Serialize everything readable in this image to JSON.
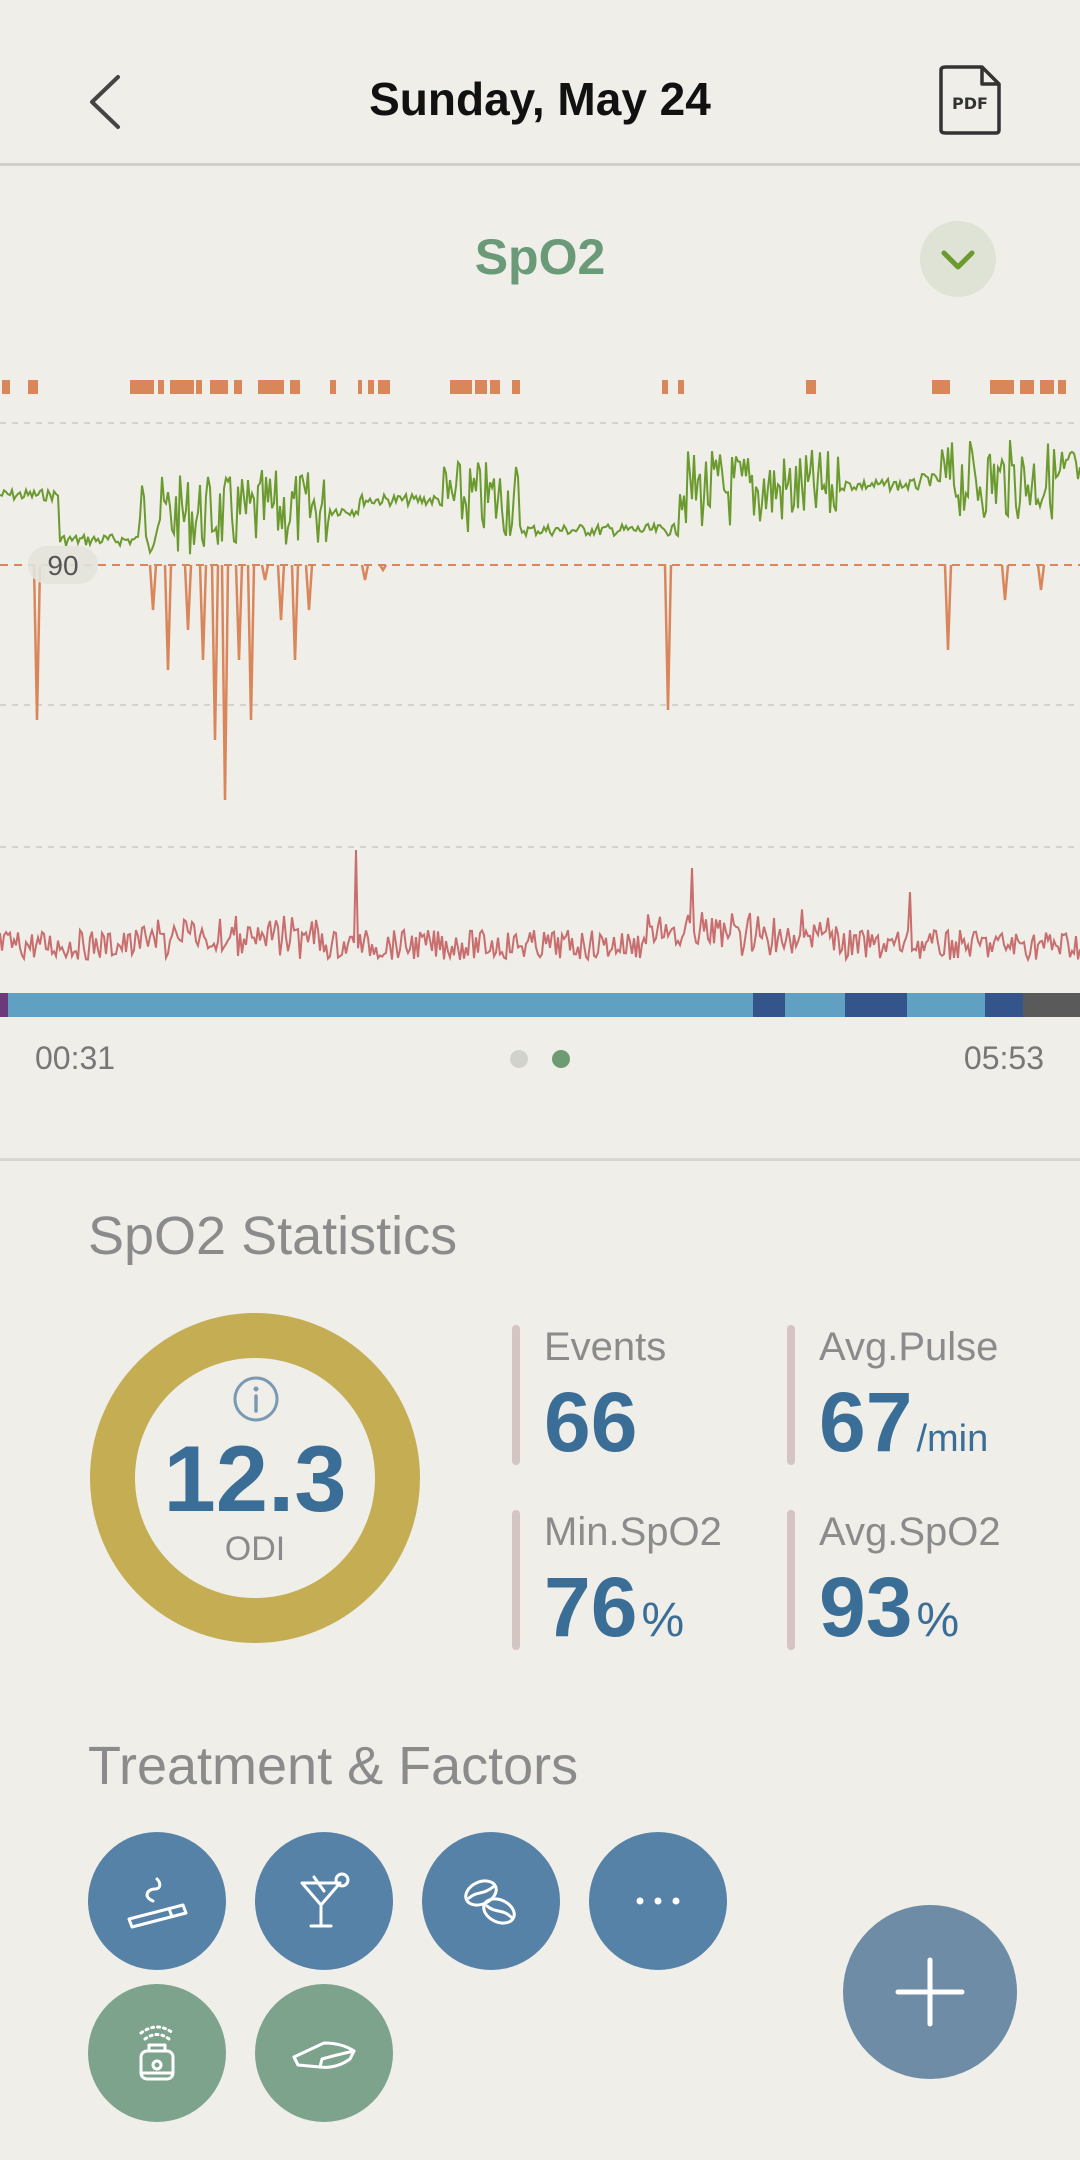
{
  "header": {
    "title": "Sunday, May 24",
    "back_icon": "chevron-left-icon",
    "pdf_label": "PDF"
  },
  "chart_section": {
    "title": "SpO2",
    "reference_label": "90",
    "start_time": "00:31",
    "end_time": "05:53",
    "page_indicator": {
      "pages": 2,
      "current": 2
    }
  },
  "chart_data": {
    "type": "line",
    "x_range": [
      "00:31",
      "05:53"
    ],
    "threshold": 90,
    "series": [],
    "colors": {
      "spo2": "#6b9a2e",
      "desaturation": "#d9875a",
      "pulse": "#c86e6e",
      "sleep_light": "#5fa0c3",
      "sleep_deep": "#34548c",
      "sleep_awake": "#5a5a5a",
      "sleep_rem": "#6b3a78"
    }
  },
  "stats": {
    "title": "SpO2 Statistics",
    "odi": {
      "value": "12.3",
      "label": "ODI",
      "ring_color": "#c4ad53"
    },
    "events": {
      "label": "Events",
      "value": "66",
      "unit": ""
    },
    "avg_pulse": {
      "label": "Avg.Pulse",
      "value": "67",
      "unit": "/min"
    },
    "min_spo2": {
      "label": "Min.SpO2",
      "value": "76",
      "unit": "%"
    },
    "avg_spo2": {
      "label": "Avg.SpO2",
      "value": "93",
      "unit": "%"
    }
  },
  "factors": {
    "title": "Treatment & Factors",
    "buttons": [
      "cigarette-icon",
      "cocktail-icon",
      "coffee-bean-icon",
      "more-icon",
      "cpap-icon",
      "pillow-icon"
    ]
  },
  "fab_icon": "plus-icon"
}
